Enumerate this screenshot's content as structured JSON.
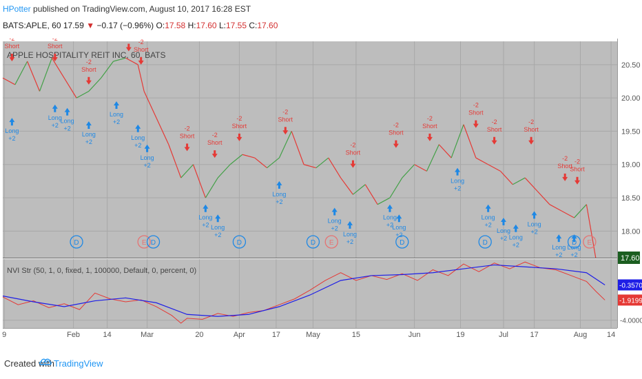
{
  "header": {
    "author": "HPotter",
    "published": "published on TradingView.com, August 10, 2017 16:28 EST",
    "symbol": "BATS:APLE, 60",
    "last": "17.59",
    "arrow": "▼",
    "change": "−0.17 (−0.96%)",
    "o_label": "O:",
    "o_val": "17.58",
    "h_label": "H:",
    "h_val": "17.60",
    "l_label": "L:",
    "l_val": "17.55",
    "c_label": "C:",
    "c_val": "17.60"
  },
  "footer": {
    "created": "Created with",
    "brand": "TradingView"
  },
  "colors": {
    "panel_bg": "#bdbdbd",
    "price_red": "#e53935",
    "price_green": "#43a047",
    "indicator_blue": "#1e1ee6",
    "indicator_red": "#e53935",
    "long_blue": "#1e88e5",
    "short_red": "#e53935",
    "event_d": "#1e88e5",
    "event_e": "#e57373"
  },
  "chart_data": [
    {
      "type": "line",
      "title": "APPLE HOSPITALITY REIT INC, 60, BATS",
      "ylim": [
        17.6,
        20.85
      ],
      "y_ticks": [
        20.5,
        20.0,
        19.5,
        19.0,
        18.5,
        18.0
      ],
      "y_tick_labels": [
        "20.50",
        "20.00",
        "19.50",
        "19.00",
        "18.50",
        "18.00"
      ],
      "last_price_label": "17.60",
      "x_ticks": [
        {
          "label": "9",
          "x": 0.5
        },
        {
          "label": "Feb",
          "x": 23
        },
        {
          "label": "14",
          "x": 34
        },
        {
          "label": "Mar",
          "x": 47
        },
        {
          "label": "20",
          "x": 64
        },
        {
          "label": "Apr",
          "x": 77
        },
        {
          "label": "17",
          "x": 89
        },
        {
          "label": "May",
          "x": 101
        },
        {
          "label": "15",
          "x": 115
        },
        {
          "label": "Jun",
          "x": 134
        },
        {
          "label": "19",
          "x": 149
        },
        {
          "label": "Jul",
          "x": 163
        },
        {
          "label": "17",
          "x": 173
        },
        {
          "label": "Aug",
          "x": 188
        },
        {
          "label": "14",
          "x": 198
        }
      ],
      "xlim": [
        0,
        200
      ],
      "series": [
        {
          "name": "",
          "x": [
            0,
            4,
            8,
            12,
            16,
            20,
            24,
            28,
            32,
            36,
            40,
            44,
            46,
            50,
            54,
            58,
            62,
            66,
            70,
            74,
            78,
            82,
            86,
            90,
            94,
            98,
            102,
            106,
            110,
            114,
            118,
            122,
            126,
            130,
            134,
            138,
            142,
            146,
            150,
            154,
            158,
            162,
            166,
            170,
            174,
            178,
            182,
            186,
            190,
            193
          ],
          "y": [
            20.3,
            20.2,
            20.55,
            20.1,
            20.6,
            20.3,
            20.0,
            20.1,
            20.3,
            20.55,
            20.6,
            20.5,
            20.1,
            19.7,
            19.3,
            18.8,
            19.0,
            18.5,
            18.8,
            19.0,
            19.15,
            19.1,
            18.95,
            19.1,
            19.5,
            19.0,
            18.95,
            19.1,
            18.8,
            18.55,
            18.7,
            18.4,
            18.5,
            18.8,
            19.0,
            18.9,
            19.3,
            19.1,
            19.6,
            19.1,
            19.0,
            18.9,
            18.7,
            18.8,
            18.6,
            18.4,
            18.3,
            18.2,
            18.4,
            17.6
          ]
        }
      ],
      "annotations": [
        {
          "kind": "long",
          "x": 3,
          "y": 19.7,
          "label": "Long",
          "sub": "+2"
        },
        {
          "kind": "long",
          "x": 17,
          "y": 19.9,
          "label": "Long",
          "sub": "+2"
        },
        {
          "kind": "long",
          "x": 21,
          "y": 19.85,
          "label": "Long",
          "sub": "+2"
        },
        {
          "kind": "long",
          "x": 28,
          "y": 19.65,
          "label": "Long",
          "sub": "+2"
        },
        {
          "kind": "long",
          "x": 37,
          "y": 19.95,
          "label": "Long",
          "sub": "+2"
        },
        {
          "kind": "long",
          "x": 44,
          "y": 19.6,
          "label": "Long",
          "sub": "+2"
        },
        {
          "kind": "long",
          "x": 47,
          "y": 19.3,
          "label": "Long",
          "sub": "+2"
        },
        {
          "kind": "long",
          "x": 66,
          "y": 18.4,
          "label": "Long",
          "sub": "+2"
        },
        {
          "kind": "long",
          "x": 70,
          "y": 18.25,
          "label": "Long",
          "sub": "+2"
        },
        {
          "kind": "long",
          "x": 90,
          "y": 18.75,
          "label": "Long",
          "sub": "+2"
        },
        {
          "kind": "long",
          "x": 108,
          "y": 18.35,
          "label": "Long",
          "sub": "+2"
        },
        {
          "kind": "long",
          "x": 113,
          "y": 18.15,
          "label": "Long",
          "sub": "+2"
        },
        {
          "kind": "long",
          "x": 126,
          "y": 18.4,
          "label": "Long",
          "sub": "+2"
        },
        {
          "kind": "long",
          "x": 129,
          "y": 18.25,
          "label": "Long",
          "sub": "+2"
        },
        {
          "kind": "long",
          "x": 148,
          "y": 18.95,
          "label": "Long",
          "sub": "+2"
        },
        {
          "kind": "long",
          "x": 158,
          "y": 18.4,
          "label": "Long",
          "sub": "+2"
        },
        {
          "kind": "long",
          "x": 163,
          "y": 18.2,
          "label": "Long",
          "sub": "+2"
        },
        {
          "kind": "long",
          "x": 167,
          "y": 18.1,
          "label": "Long",
          "sub": "+2"
        },
        {
          "kind": "long",
          "x": 173,
          "y": 18.3,
          "label": "Long",
          "sub": "+2"
        },
        {
          "kind": "long",
          "x": 181,
          "y": 17.95,
          "label": "Long",
          "sub": "+2"
        },
        {
          "kind": "long",
          "x": 186,
          "y": 17.95,
          "label": "Long",
          "sub": "+2"
        },
        {
          "kind": "short",
          "x": 3,
          "y": 20.55,
          "label": "Short",
          "sub": "-2"
        },
        {
          "kind": "short",
          "x": 17,
          "y": 20.55,
          "label": "Short",
          "sub": "-2"
        },
        {
          "kind": "short",
          "x": 28,
          "y": 20.2,
          "label": "Short",
          "sub": "-2"
        },
        {
          "kind": "short",
          "x": 41,
          "y": 20.7,
          "label": "Short",
          "sub": "-2"
        },
        {
          "kind": "short",
          "x": 45,
          "y": 20.5,
          "label": "Short",
          "sub": "-2"
        },
        {
          "kind": "short",
          "x": 60,
          "y": 19.2,
          "label": "Short",
          "sub": "-2"
        },
        {
          "kind": "short",
          "x": 69,
          "y": 19.1,
          "label": "Short",
          "sub": "-2"
        },
        {
          "kind": "short",
          "x": 77,
          "y": 19.35,
          "label": "Short",
          "sub": "-2"
        },
        {
          "kind": "short",
          "x": 92,
          "y": 19.45,
          "label": "Short",
          "sub": "-2"
        },
        {
          "kind": "short",
          "x": 114,
          "y": 18.95,
          "label": "Short",
          "sub": "-2"
        },
        {
          "kind": "short",
          "x": 128,
          "y": 19.25,
          "label": "Short",
          "sub": "-2"
        },
        {
          "kind": "short",
          "x": 139,
          "y": 19.35,
          "label": "Short",
          "sub": "-2"
        },
        {
          "kind": "short",
          "x": 154,
          "y": 19.55,
          "label": "Short",
          "sub": "-2"
        },
        {
          "kind": "short",
          "x": 160,
          "y": 19.3,
          "label": "Short",
          "sub": "-2"
        },
        {
          "kind": "short",
          "x": 172,
          "y": 19.3,
          "label": "Short",
          "sub": "-2"
        },
        {
          "kind": "short",
          "x": 183,
          "y": 18.75,
          "label": "Short",
          "sub": "-2"
        },
        {
          "kind": "short",
          "x": 187,
          "y": 18.7,
          "label": "Short",
          "sub": "-2"
        }
      ],
      "events": [
        {
          "x": 24,
          "label": "D"
        },
        {
          "x": 46,
          "label": "E"
        },
        {
          "x": 49,
          "label": "D"
        },
        {
          "x": 77,
          "label": "D"
        },
        {
          "x": 101,
          "label": "D"
        },
        {
          "x": 107,
          "label": "E"
        },
        {
          "x": 130,
          "label": "D"
        },
        {
          "x": 157,
          "label": "D"
        },
        {
          "x": 186,
          "label": "D"
        },
        {
          "x": 191,
          "label": "E"
        }
      ]
    },
    {
      "type": "line",
      "title": "NVI Str (50, 1, 0, fixed, 1, 100000, Default, 0, percent, 0)",
      "ylim": [
        -4.8,
        2.3
      ],
      "y_ticks": [
        -4.0
      ],
      "y_tick_labels": [
        "-4.0000"
      ],
      "value_labels": [
        "-0.3570",
        "-1.9199"
      ],
      "series": [
        {
          "name": "",
          "x": [
            0,
            10,
            20,
            30,
            40,
            50,
            60,
            70,
            80,
            90,
            100,
            110,
            120,
            130,
            140,
            150,
            160,
            170,
            180,
            190,
            196
          ],
          "y": [
            -1.5,
            -2.1,
            -2.6,
            -2.0,
            -1.7,
            -2.2,
            -3.4,
            -3.6,
            -3.4,
            -2.6,
            -1.4,
            0.1,
            0.6,
            0.7,
            0.9,
            1.3,
            1.7,
            1.5,
            1.3,
            0.9,
            -0.36
          ]
        },
        {
          "name": "",
          "x": [
            0,
            5,
            10,
            15,
            20,
            25,
            30,
            35,
            40,
            45,
            50,
            55,
            58,
            60,
            65,
            70,
            75,
            80,
            85,
            90,
            95,
            100,
            105,
            110,
            115,
            120,
            125,
            130,
            135,
            140,
            145,
            150,
            155,
            160,
            165,
            170,
            175,
            180,
            185,
            190,
            193,
            196
          ],
          "y": [
            -1.6,
            -2.4,
            -2.0,
            -2.7,
            -2.3,
            -2.9,
            -1.2,
            -1.8,
            -2.1,
            -1.9,
            -2.6,
            -3.5,
            -4.3,
            -3.8,
            -3.9,
            -3.3,
            -3.6,
            -3.2,
            -3.0,
            -2.4,
            -1.8,
            -0.9,
            0.1,
            0.9,
            0.1,
            0.6,
            0.2,
            0.8,
            0.1,
            1.2,
            0.6,
            1.8,
            1.0,
            1.9,
            1.3,
            2.0,
            1.4,
            1.2,
            0.6,
            0.0,
            -1.0,
            -1.92
          ]
        }
      ]
    }
  ]
}
